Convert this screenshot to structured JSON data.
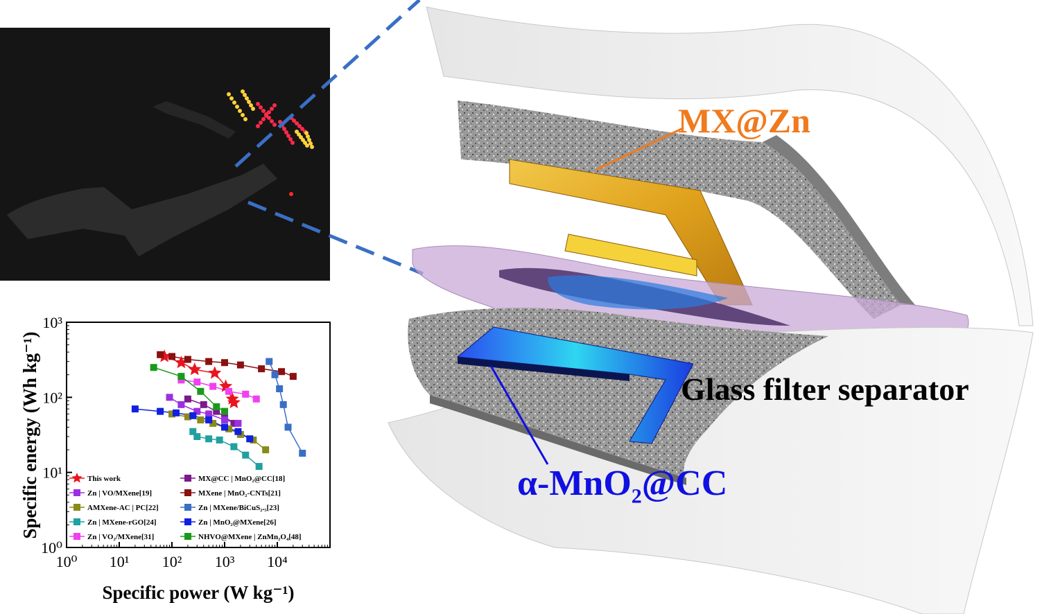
{
  "labels": {
    "anode": "MX@Zn",
    "separator": "Glass filter separator",
    "cathode_prefix": "α-MnO",
    "cathode_sub": "2",
    "cathode_suffix": "@CC"
  },
  "colors": {
    "anode": "#f07a1e",
    "cathode": "#1010e0",
    "dash": "#3a6fc4"
  },
  "chart_data": {
    "type": "scatter",
    "title": "",
    "xlabel": "Specific power (W kg⁻¹)",
    "ylabel": "Specific energy (Wh kg⁻¹)",
    "xscale": "log",
    "yscale": "log",
    "xlim": [
      1,
      100000
    ],
    "ylim": [
      1,
      1000
    ],
    "x_ticks": [
      "10⁰",
      "10¹",
      "10²",
      "10³",
      "10⁴"
    ],
    "y_ticks": [
      "10⁰",
      "10¹",
      "10²",
      "10³"
    ],
    "legend_placement": "bottom-left",
    "series": [
      {
        "name": "This work",
        "marker": "star",
        "color": "#e8141e",
        "x": [
          72,
          150,
          270,
          650,
          1050,
          1400,
          1500
        ],
        "y": [
          350,
          290,
          235,
          210,
          140,
          95,
          85
        ]
      },
      {
        "name": "MX@CC | MnO₂@CC[18]",
        "marker": "square",
        "color": "#7a1a8c",
        "x": [
          200,
          400,
          700,
          1000,
          1500
        ],
        "y": [
          95,
          80,
          65,
          55,
          45
        ]
      },
      {
        "name": "Zn | VO/MXene[19]",
        "marker": "square",
        "color": "#9b30e0",
        "x": [
          90,
          150,
          300,
          500,
          1000,
          1800
        ],
        "y": [
          100,
          80,
          65,
          60,
          50,
          45
        ]
      },
      {
        "name": "MXene | MnO₂-CNTs[21]",
        "marker": "square",
        "color": "#8b1010",
        "x": [
          60,
          100,
          200,
          500,
          1000,
          2000,
          5000,
          12000,
          20000
        ],
        "y": [
          370,
          350,
          320,
          300,
          290,
          270,
          240,
          220,
          190
        ]
      },
      {
        "name": "AMXene-AC | PC[22]",
        "marker": "square",
        "color": "#8a8a1a",
        "x": [
          100,
          200,
          350,
          600,
          1200,
          2000,
          3500,
          6000
        ],
        "y": [
          60,
          55,
          50,
          45,
          38,
          32,
          27,
          20
        ]
      },
      {
        "name": "Zn | MXene/BiCuS₂.₅[23]",
        "marker": "square",
        "color": "#3a6fc4",
        "x": [
          7000,
          9000,
          11000,
          13000,
          16000,
          30000
        ],
        "y": [
          300,
          200,
          130,
          80,
          40,
          18
        ]
      },
      {
        "name": "Zn | MXene-rGO[24]",
        "marker": "square",
        "color": "#20a0a0",
        "x": [
          250,
          300,
          500,
          800,
          1500,
          2500,
          4500
        ],
        "y": [
          35,
          30,
          28,
          27,
          22,
          17,
          12
        ]
      },
      {
        "name": "Zn | MnO₂@MXene[26]",
        "marker": "square",
        "color": "#1020e0",
        "x": [
          20,
          60,
          120,
          250,
          500,
          1000,
          1800,
          3000
        ],
        "y": [
          70,
          65,
          62,
          57,
          50,
          40,
          35,
          28
        ]
      },
      {
        "name": "Zn | VO₂/MXene[31]",
        "marker": "square",
        "color": "#f040f0",
        "x": [
          150,
          300,
          600,
          1200,
          2500,
          4000
        ],
        "y": [
          170,
          160,
          140,
          120,
          110,
          95
        ]
      },
      {
        "name": "NHVO@MXene | ZnMn₂O₄[48]",
        "marker": "square",
        "color": "#1a9a1a",
        "x": [
          45,
          150,
          350,
          700,
          1000
        ],
        "y": [
          250,
          190,
          120,
          75,
          65
        ]
      }
    ]
  }
}
